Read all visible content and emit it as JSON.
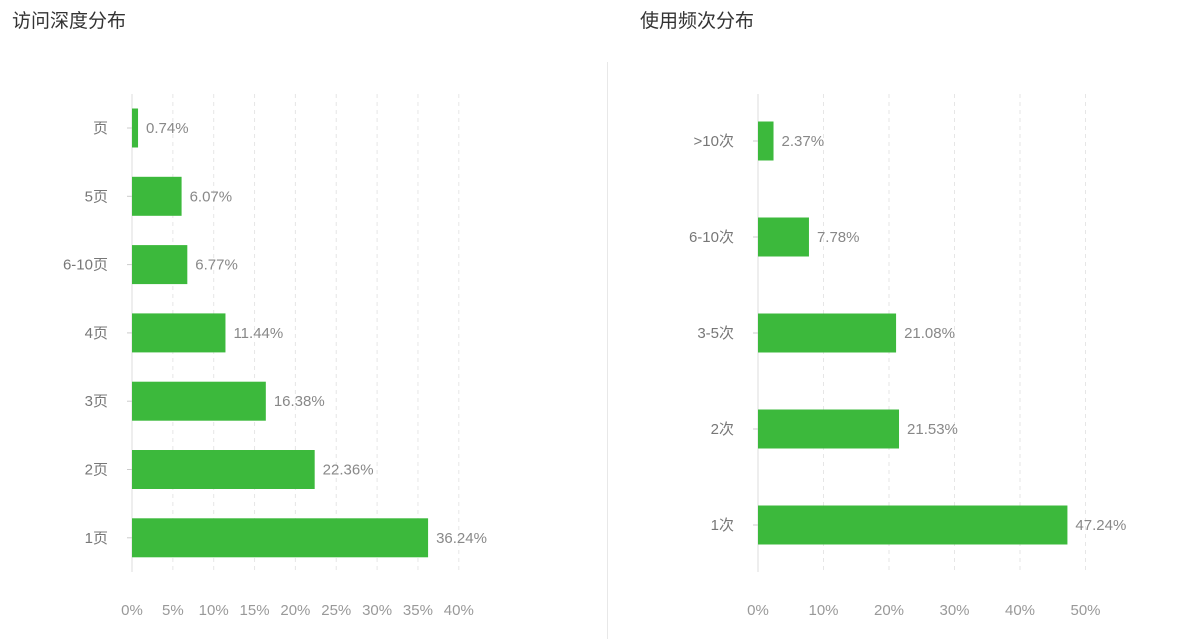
{
  "chart_data": [
    {
      "type": "bar",
      "orientation": "horizontal",
      "title": "访问深度分布",
      "categories": [
        "页",
        "5页",
        "6-10页",
        "4页",
        "3页",
        "2页",
        "1页"
      ],
      "values": [
        0.74,
        6.07,
        6.77,
        11.44,
        16.38,
        22.36,
        36.24
      ],
      "data_labels": [
        "0.74%",
        "6.07%",
        "6.77%",
        "11.44%",
        "16.38%",
        "22.36%",
        "36.24%"
      ],
      "xlim": [
        0,
        40
      ],
      "xticks": [
        0,
        5,
        10,
        15,
        20,
        25,
        30,
        35,
        40
      ],
      "xtick_labels": [
        "0%",
        "5%",
        "10%",
        "15%",
        "20%",
        "25%",
        "30%",
        "35%",
        "40%"
      ],
      "grid": "vertical-dashed",
      "color": "#3cb93c"
    },
    {
      "type": "bar",
      "orientation": "horizontal",
      "title": "使用频次分布",
      "categories": [
        ">10次",
        "6-10次",
        "3-5次",
        "2次",
        "1次"
      ],
      "values": [
        2.37,
        7.78,
        21.08,
        21.53,
        47.24
      ],
      "data_labels": [
        "2.37%",
        "7.78%",
        "21.08%",
        "21.53%",
        "47.24%"
      ],
      "xlim": [
        0,
        50
      ],
      "xticks": [
        0,
        10,
        20,
        30,
        40,
        50
      ],
      "xtick_labels": [
        "0%",
        "10%",
        "20%",
        "30%",
        "40%",
        "50%"
      ],
      "grid": "vertical-dashed",
      "color": "#3cb93c"
    }
  ]
}
